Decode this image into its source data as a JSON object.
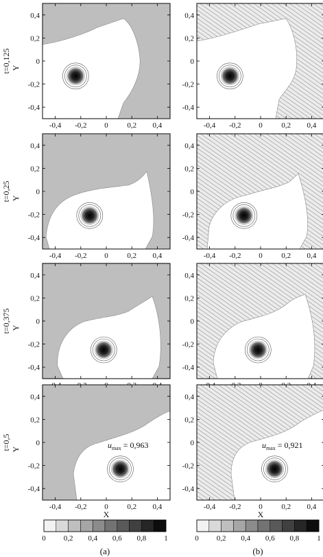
{
  "figure": {
    "column_labels": [
      "(a)",
      "(b)"
    ],
    "row_labels": [
      "t=0,125",
      "t=0,25",
      "t=0,375",
      "t=0,5"
    ],
    "xlabel": "X",
    "ylabel": "Y",
    "umax_label": "u",
    "umax_sub": "max"
  },
  "chart_data": [
    {
      "type": "heatmap",
      "panel": "a",
      "row_label": "t=0,125",
      "xlim": [
        -0.5,
        0.5
      ],
      "ylim": [
        -0.5,
        0.5
      ],
      "xticks": [
        "-0,4",
        "-0,2",
        "0",
        "0,2",
        "0,4"
      ],
      "yticks": [
        "0,4",
        "0,2",
        "0",
        "-0,2",
        "-0,4"
      ],
      "peak_center": [
        -0.24,
        -0.13
      ],
      "colormap": "white-to-black",
      "clim": [
        0,
        1
      ]
    },
    {
      "type": "heatmap",
      "panel": "b",
      "row_label": "t=0,125",
      "xlim": [
        -0.5,
        0.5
      ],
      "ylim": [
        -0.5,
        0.5
      ],
      "xticks": [
        "-0,4",
        "-0,2",
        "0",
        "0,2",
        "0,4"
      ],
      "yticks": [
        "0,4",
        "0,2",
        "0",
        "-0,2",
        "-0,4"
      ],
      "peak_center": [
        -0.24,
        -0.13
      ],
      "colormap": "white-to-black",
      "clim": [
        0,
        1
      ]
    },
    {
      "type": "heatmap",
      "panel": "a",
      "row_label": "t=0,25",
      "xlim": [
        -0.5,
        0.5
      ],
      "ylim": [
        -0.5,
        0.5
      ],
      "xticks": [
        "-0,4",
        "-0,2",
        "0",
        "0,2",
        "0,4"
      ],
      "yticks": [
        "0,4",
        "0,2",
        "0",
        "-0,2",
        "-0,4"
      ],
      "peak_center": [
        -0.13,
        -0.21
      ],
      "colormap": "white-to-black",
      "clim": [
        0,
        1
      ]
    },
    {
      "type": "heatmap",
      "panel": "b",
      "row_label": "t=0,25",
      "xlim": [
        -0.5,
        0.5
      ],
      "ylim": [
        -0.5,
        0.5
      ],
      "xticks": [
        "-0,4",
        "-0,2",
        "0",
        "0,2",
        "0,4"
      ],
      "yticks": [
        "0,4",
        "0,2",
        "0",
        "-0,2",
        "-0,4"
      ],
      "peak_center": [
        -0.13,
        -0.21
      ],
      "colormap": "white-to-black",
      "clim": [
        0,
        1
      ]
    },
    {
      "type": "heatmap",
      "panel": "a",
      "row_label": "t=0,375",
      "xlim": [
        -0.5,
        0.5
      ],
      "ylim": [
        -0.5,
        0.5
      ],
      "xticks": [
        "-0,4",
        "-0,2",
        "0",
        "0,2",
        "0,4"
      ],
      "yticks": [
        "0,4",
        "0,2",
        "0",
        "-0,2",
        "-0,4"
      ],
      "peak_center": [
        -0.02,
        -0.25
      ],
      "colormap": "white-to-black",
      "clim": [
        0,
        1
      ]
    },
    {
      "type": "heatmap",
      "panel": "b",
      "row_label": "t=0,375",
      "xlim": [
        -0.5,
        0.5
      ],
      "ylim": [
        -0.5,
        0.5
      ],
      "xticks": [
        "-0,4",
        "-0,2",
        "0",
        "0,2",
        "0,4"
      ],
      "yticks": [
        "0,4",
        "0,2",
        "0",
        "-0,2",
        "-0,4"
      ],
      "peak_center": [
        -0.02,
        -0.25
      ],
      "colormap": "white-to-black",
      "clim": [
        0,
        1
      ]
    },
    {
      "type": "heatmap",
      "panel": "a",
      "row_label": "t=0,5",
      "xlim": [
        -0.5,
        0.5
      ],
      "ylim": [
        -0.5,
        0.5
      ],
      "xticks": [
        "-0,4",
        "-0,2",
        "0",
        "0,2",
        "0,4"
      ],
      "yticks": [
        "0,4",
        "0,2",
        "0",
        "-0,2",
        "-0,4"
      ],
      "peak_center": [
        0.11,
        -0.23
      ],
      "umax": "= 0,963",
      "colormap": "white-to-black",
      "clim": [
        0,
        1
      ]
    },
    {
      "type": "heatmap",
      "panel": "b",
      "row_label": "t=0,5",
      "xlim": [
        -0.5,
        0.5
      ],
      "ylim": [
        -0.5,
        0.5
      ],
      "xticks": [
        "-0,4",
        "-0,2",
        "0",
        "0,2",
        "0,4"
      ],
      "yticks": [
        "0,4",
        "0,2",
        "0",
        "-0,2",
        "-0,4"
      ],
      "peak_center": [
        0.11,
        -0.23
      ],
      "umax": "= 0,921",
      "colormap": "white-to-black",
      "clim": [
        0,
        1
      ]
    }
  ],
  "colorbars": [
    {
      "panel": "a",
      "clim": [
        0,
        1
      ],
      "levels": 10,
      "ticks": [
        "0",
        "0,2",
        "0,4",
        "0,6",
        "0,8",
        "1"
      ]
    },
    {
      "panel": "b",
      "clim": [
        0,
        1
      ],
      "levels": 10,
      "ticks": [
        "0",
        "0,2",
        "0,4",
        "0,6",
        "0,8",
        "1"
      ]
    }
  ]
}
